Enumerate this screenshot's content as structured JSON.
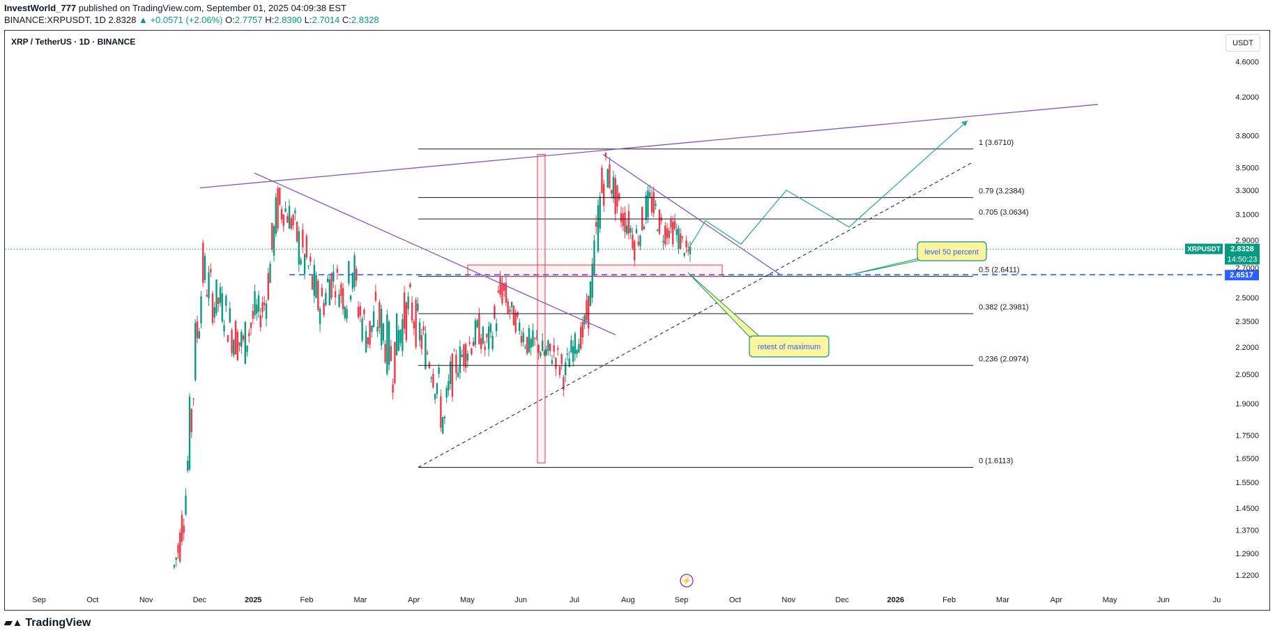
{
  "header": {
    "author": "InvestWorld_777",
    "published_text": "published on TradingView.com, September 01, 2025 04:09:38 EST",
    "symbol_line": "BINANCE:XRPUSDT, 1D",
    "last": "2.8328",
    "change": "+0.0571 (+2.06%)",
    "o_label": "O:",
    "o_val": "2.7757",
    "h_label": "H:",
    "h_val": "2.8390",
    "l_label": "L:",
    "l_val": "2.7014",
    "c_label": "C:",
    "c_val": "2.8328"
  },
  "symbol_title": "XRP / TetherUS · 1D · BINANCE",
  "currency_button": "USDT",
  "footer_brand": "TradingView",
  "colors": {
    "up": "#089981",
    "down": "#f23645",
    "purple": "#7e57c2",
    "blue": "#2962ff",
    "fib": "#131722"
  },
  "chart_data": {
    "type": "candlestick",
    "title": "XRP / TetherUS · 1D · BINANCE",
    "scale": "log",
    "ylim": [
      1.17,
      4.95
    ],
    "y_ticks": [
      "4.6000",
      "4.2000",
      "3.8000",
      "3.5000",
      "3.3000",
      "3.1000",
      "2.9000",
      "2.7000",
      "2.5000",
      "2.3500",
      "2.2000",
      "2.0500",
      "1.9000",
      "1.7500",
      "1.6500",
      "1.5500",
      "1.4500",
      "1.3700",
      "1.2900",
      "1.2200"
    ],
    "x_ticks": [
      "Sep",
      "Oct",
      "Nov",
      "Dec",
      "2025",
      "Feb",
      "Mar",
      "Apr",
      "May",
      "Jun",
      "Jul",
      "Aug",
      "Sep",
      "Oct",
      "Nov",
      "Dec",
      "2026",
      "Feb",
      "Mar",
      "Apr",
      "May",
      "Jun",
      "Ju"
    ],
    "price_path": [
      [
        1.19,
        1.3
      ],
      [
        1.25,
        1.42
      ],
      [
        1.4,
        1.62
      ],
      [
        1.6,
        2.1
      ],
      [
        2.05,
        2.55
      ],
      [
        2.45,
        2.9
      ],
      [
        2.4,
        2.75
      ],
      [
        2.3,
        2.65
      ],
      [
        2.35,
        2.6
      ],
      [
        2.25,
        2.55
      ],
      [
        2.15,
        2.45
      ],
      [
        2.1,
        2.4
      ],
      [
        2.05,
        2.35
      ],
      [
        2.15,
        2.45
      ],
      [
        2.25,
        2.55
      ],
      [
        2.3,
        2.5
      ],
      [
        2.35,
        2.65
      ],
      [
        2.6,
        3.05
      ],
      [
        2.9,
        3.4
      ],
      [
        3.0,
        3.3
      ],
      [
        2.95,
        3.25
      ],
      [
        2.8,
        3.15
      ],
      [
        2.6,
        3.05
      ],
      [
        2.5,
        2.95
      ],
      [
        2.4,
        2.8
      ],
      [
        2.3,
        2.65
      ],
      [
        2.35,
        2.6
      ],
      [
        2.45,
        2.8
      ],
      [
        2.5,
        2.75
      ],
      [
        2.4,
        2.7
      ],
      [
        2.35,
        2.65
      ],
      [
        2.5,
        3.0
      ],
      [
        2.3,
        2.6
      ],
      [
        2.15,
        2.5
      ],
      [
        2.1,
        2.45
      ],
      [
        2.2,
        2.55
      ],
      [
        2.15,
        2.5
      ],
      [
        2.05,
        2.4
      ],
      [
        1.95,
        2.3
      ],
      [
        2.1,
        2.45
      ],
      [
        2.2,
        2.55
      ],
      [
        2.3,
        2.6
      ],
      [
        2.2,
        2.5
      ],
      [
        2.1,
        2.4
      ],
      [
        2.05,
        2.3
      ],
      [
        1.95,
        2.25
      ],
      [
        1.8,
        2.1
      ],
      [
        1.62,
        1.95
      ],
      [
        1.9,
        2.15
      ],
      [
        2.0,
        2.2
      ],
      [
        2.05,
        2.25
      ],
      [
        2.1,
        2.3
      ],
      [
        2.15,
        2.35
      ],
      [
        2.2,
        2.4
      ],
      [
        2.1,
        2.3
      ],
      [
        2.15,
        2.35
      ],
      [
        2.25,
        2.55
      ],
      [
        2.4,
        2.75
      ],
      [
        2.35,
        2.55
      ],
      [
        2.3,
        2.45
      ],
      [
        2.25,
        2.4
      ],
      [
        2.15,
        2.35
      ],
      [
        2.1,
        2.3
      ],
      [
        2.15,
        2.3
      ],
      [
        2.1,
        2.25
      ],
      [
        2.05,
        2.25
      ],
      [
        2.1,
        2.25
      ],
      [
        2.0,
        2.2
      ],
      [
        1.95,
        2.15
      ],
      [
        2.1,
        2.25
      ],
      [
        2.15,
        2.3
      ],
      [
        2.2,
        2.35
      ],
      [
        2.3,
        2.55
      ],
      [
        2.5,
        2.95
      ],
      [
        2.9,
        3.5
      ],
      [
        3.3,
        3.67
      ],
      [
        3.2,
        3.55
      ],
      [
        3.0,
        3.35
      ],
      [
        2.95,
        3.2
      ],
      [
        2.9,
        3.15
      ],
      [
        2.75,
        3.05
      ],
      [
        2.85,
        3.1
      ],
      [
        3.0,
        3.3
      ],
      [
        3.05,
        3.35
      ],
      [
        2.95,
        3.2
      ],
      [
        2.85,
        3.1
      ],
      [
        2.9,
        3.05
      ],
      [
        2.85,
        3.1
      ],
      [
        2.8,
        3.0
      ],
      [
        2.75,
        2.9
      ],
      [
        2.7,
        2.84
      ]
    ],
    "fibonacci": [
      {
        "level": "1",
        "price": 3.671,
        "label": "1 (3.6710)"
      },
      {
        "level": "0.79",
        "price": 3.2384,
        "label": "0.79 (3.2384)"
      },
      {
        "level": "0.705",
        "price": 3.0634,
        "label": "0.705 (3.0634)"
      },
      {
        "level": "0.5",
        "price": 2.6411,
        "label": "0.5 (2.6411)"
      },
      {
        "level": "0.382",
        "price": 2.3981,
        "label": "0.382 (2.3981)"
      },
      {
        "level": "0.236",
        "price": 2.0974,
        "label": "0.236 (2.0974)"
      },
      {
        "level": "0",
        "price": 1.6113,
        "label": "0 (1.6113)"
      }
    ],
    "current_price": {
      "symbol": "XRPUSDT",
      "price": 2.8328,
      "price_label": "2.8328",
      "countdown": "14:50:23"
    },
    "horizontal_level": {
      "price": 2.6517,
      "label": "2.6517"
    },
    "annotations": [
      {
        "text": "level 50 percent",
        "type": "callout"
      },
      {
        "text": "retest of maximum",
        "type": "callout"
      }
    ],
    "projected_path_prices": [
      2.84,
      3.05,
      2.87,
      3.3,
      3.0,
      3.95
    ]
  }
}
